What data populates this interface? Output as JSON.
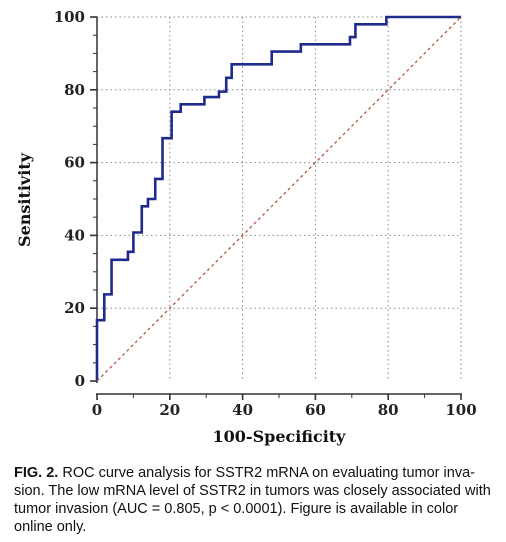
{
  "chart_data": {
    "type": "line",
    "xlabel": "100-Specificity",
    "ylabel": "Sensitivity",
    "xlim": [
      0,
      100
    ],
    "ylim": [
      0,
      100
    ],
    "xticks": [
      0,
      20,
      40,
      60,
      80,
      100
    ],
    "yticks": [
      0,
      20,
      40,
      60,
      80,
      100
    ],
    "grid": true,
    "series": [
      {
        "kind": "roc-step",
        "color": "#1e2a8c",
        "points": [
          [
            0,
            0
          ],
          [
            0,
            16.7
          ],
          [
            2,
            16.7
          ],
          [
            2,
            23.8
          ],
          [
            4,
            23.8
          ],
          [
            4,
            33.3
          ],
          [
            8.5,
            33.3
          ],
          [
            8.5,
            35.5
          ],
          [
            10,
            35.5
          ],
          [
            10,
            40.8
          ],
          [
            12.3,
            40.8
          ],
          [
            12.3,
            48
          ],
          [
            14,
            48
          ],
          [
            14,
            50
          ],
          [
            16,
            50
          ],
          [
            16,
            55.5
          ],
          [
            18,
            55.5
          ],
          [
            18,
            66.7
          ],
          [
            20.5,
            66.7
          ],
          [
            20.5,
            74
          ],
          [
            23,
            74
          ],
          [
            23,
            76
          ],
          [
            29.5,
            76
          ],
          [
            29.5,
            78
          ],
          [
            33.5,
            78
          ],
          [
            33.5,
            79.5
          ],
          [
            35.5,
            79.5
          ],
          [
            35.5,
            83.3
          ],
          [
            37,
            83.3
          ],
          [
            37,
            87
          ],
          [
            48,
            87
          ],
          [
            48,
            90.5
          ],
          [
            56,
            90.5
          ],
          [
            56,
            92.5
          ],
          [
            69.5,
            92.5
          ],
          [
            69.5,
            94.5
          ],
          [
            71,
            94.5
          ],
          [
            71,
            98
          ],
          [
            79.5,
            98
          ],
          [
            79.5,
            100
          ],
          [
            100,
            100
          ]
        ]
      },
      {
        "kind": "reference-diagonal",
        "color": "#b05a3a",
        "points": [
          [
            0,
            0
          ],
          [
            100,
            100
          ]
        ]
      }
    ]
  },
  "caption": {
    "label": "FIG. 2.",
    "text": " ROC curve analysis for SSTR2 mRNA on evaluating tumor inva-sion. The low mRNA level of SSTR2 in tumors was closely associated with tumor invasion (AUC = 0.805, p < 0.0001). Figure is available in color online only."
  }
}
